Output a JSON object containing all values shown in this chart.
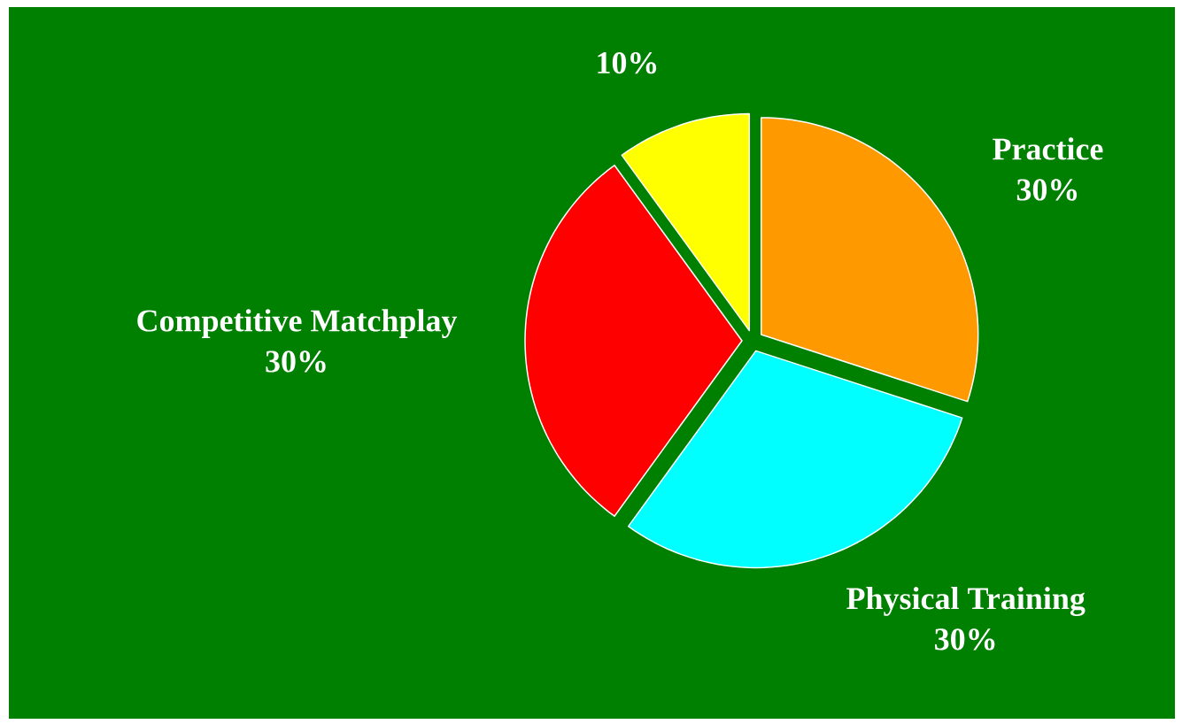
{
  "chart_data": {
    "type": "pie",
    "categories": [
      "Practice",
      "Physical Training",
      "Competitive Matchplay",
      null
    ],
    "values": [
      30,
      30,
      30,
      10
    ],
    "value_labels": [
      "30%",
      "30%",
      "30%",
      "10%"
    ],
    "colors": [
      "#ff9900",
      "#00ffff",
      "#ff0000",
      "#ffff00"
    ]
  }
}
